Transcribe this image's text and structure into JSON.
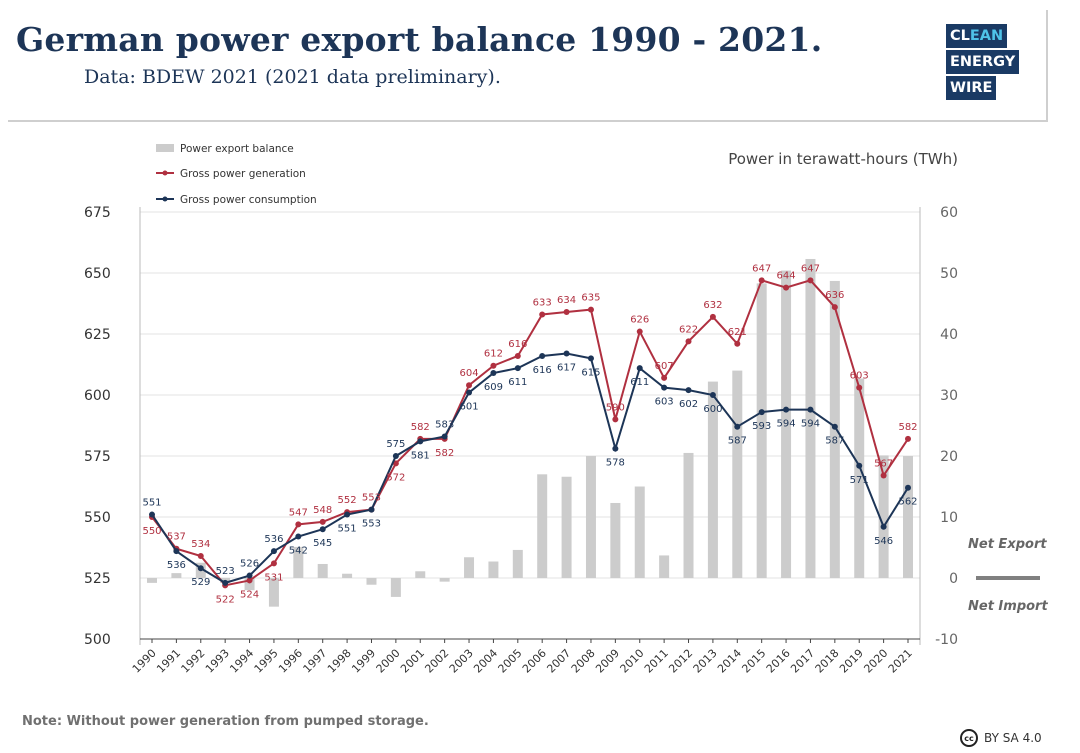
{
  "header": {
    "title": "German power export balance 1990 - 2021.",
    "subtitle": "Data: BDEW 2021 (2021 data preliminary).",
    "logo_lines": [
      "CLEAN",
      "ENERGY",
      "WIRE"
    ]
  },
  "footer": {
    "note": "Note: Without power generation from pumped storage.",
    "license": "BY SA 4.0",
    "license_icon": "cc-icon"
  },
  "colors": {
    "bars": "#cccccc",
    "generation": "#b03040",
    "consumption": "#1d3557",
    "axis_text": "#333333",
    "grid": "#e3e3e3",
    "net_line": "#808080",
    "logo_bg": "#1a3a64",
    "logo_accent": "#4fc3e8"
  },
  "chart_data": {
    "type": "bar+line",
    "x": [
      "1990",
      "1991",
      "1992",
      "1993",
      "1994",
      "1995",
      "1996",
      "1997",
      "1998",
      "1999",
      "2000",
      "2001",
      "2002",
      "2003",
      "2004",
      "2005",
      "2006",
      "2007",
      "2008",
      "2009",
      "2010",
      "2011",
      "2012",
      "2013",
      "2014",
      "2015",
      "2016",
      "2017",
      "2018",
      "2019",
      "2020",
      "2021"
    ],
    "yleft_lim": [
      500,
      675
    ],
    "yleft_ticks": [
      500,
      525,
      550,
      575,
      600,
      625,
      650,
      675
    ],
    "yright_lim": [
      -10,
      60
    ],
    "yright_ticks": [
      -10,
      0,
      10,
      20,
      30,
      40,
      50,
      60
    ],
    "yright_label": "Power in terawatt-hours (TWh)",
    "legend_position": "top-left",
    "grid": true,
    "net_export_label": "Net Export",
    "net_import_label": "Net Import",
    "series": [
      {
        "name": "Power export balance",
        "type": "bar",
        "axis": "right",
        "values": [
          -0.8,
          0.8,
          2.5,
          -0.8,
          -2,
          -4.7,
          5.1,
          2.3,
          0.7,
          -1.1,
          -3.1,
          1.1,
          -0.6,
          3.4,
          2.7,
          4.6,
          17,
          16.6,
          20,
          12.3,
          15,
          3.7,
          20.5,
          32.2,
          34,
          48.3,
          50.4,
          52.3,
          48.7,
          32.7,
          20.1,
          20
        ]
      },
      {
        "name": "Gross power generation",
        "type": "line",
        "axis": "left",
        "values": [
          550,
          537,
          534,
          522,
          524,
          531,
          547,
          548,
          552,
          553,
          572,
          582,
          582,
          604,
          612,
          616,
          633,
          634,
          635,
          590,
          626,
          607,
          622,
          632,
          621,
          647,
          644,
          647,
          636,
          603,
          567,
          582
        ]
      },
      {
        "name": "Gross power consumption",
        "type": "line",
        "axis": "left",
        "values": [
          551,
          536,
          529,
          523,
          526,
          536,
          542,
          545,
          551,
          553,
          575,
          581,
          583,
          601,
          609,
          611,
          616,
          617,
          615,
          578,
          611,
          603,
          602,
          600,
          587,
          593,
          594,
          594,
          587,
          571,
          546,
          562
        ]
      }
    ]
  }
}
